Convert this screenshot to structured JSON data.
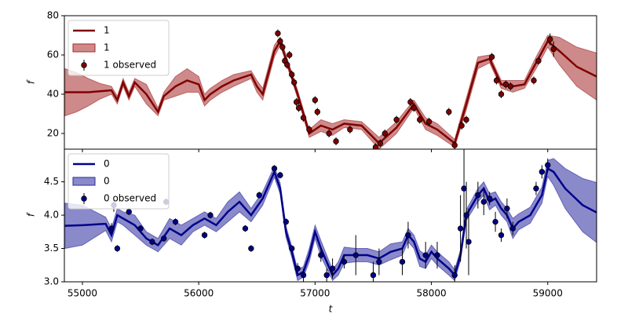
{
  "chart_data": [
    {
      "type": "line",
      "ylabel": "f",
      "xlim": [
        54845,
        59420
      ],
      "ylim": [
        12,
        80
      ],
      "yticks": [
        20,
        40,
        60,
        80
      ],
      "legend": "upper left",
      "series": [
        {
          "name": "1",
          "style": "line",
          "color": "#800000",
          "x": [
            54850,
            54950,
            55050,
            55150,
            55250,
            55300,
            55350,
            55400,
            55450,
            55550,
            55650,
            55700,
            55800,
            55900,
            56000,
            56050,
            56100,
            56200,
            56300,
            56450,
            56500,
            56550,
            56650,
            56700,
            56750,
            56850,
            56950,
            57050,
            57150,
            57250,
            57400,
            57550,
            57700,
            57850,
            57950,
            58050,
            58200,
            58300,
            58400,
            58500,
            58600,
            58700,
            58800,
            58900,
            59000,
            59100,
            59250,
            59420
          ],
          "values": [
            41,
            41,
            41,
            41.5,
            42,
            37,
            46,
            39,
            46,
            40,
            31,
            39,
            44,
            47,
            45,
            37,
            40,
            44,
            47,
            50,
            44,
            40,
            62,
            67,
            58,
            40,
            20,
            24,
            22,
            25,
            24,
            15,
            23,
            35,
            25,
            22,
            15,
            35,
            56,
            58,
            45,
            44,
            45,
            56,
            67,
            62,
            54,
            49
          ]
        },
        {
          "name": "1",
          "style": "band",
          "color": "#a52a2a",
          "lower": [
            29,
            31,
            34,
            37.5,
            40,
            35,
            44,
            37,
            44,
            35,
            29,
            37,
            39,
            41,
            41,
            34,
            37,
            41,
            44,
            48,
            41,
            37,
            59,
            65,
            56,
            38,
            18,
            21,
            19,
            23,
            22,
            12,
            20,
            33,
            22,
            19,
            13,
            32,
            53,
            56,
            43,
            41,
            43,
            53,
            64,
            55,
            44,
            37
          ],
          "upper": [
            53,
            51,
            48,
            45.5,
            44,
            39,
            48,
            41,
            48,
            45,
            33,
            41,
            49,
            53,
            49,
            40,
            43,
            47,
            50,
            52,
            47,
            43,
            65,
            69,
            60,
            42,
            22,
            27,
            25,
            27,
            26,
            18,
            26,
            37,
            28,
            25,
            17,
            38,
            59,
            60,
            47,
            47,
            47,
            59,
            70,
            69,
            64,
            61
          ]
        },
        {
          "name": "1 observed",
          "style": "errorbar",
          "color": "#800000",
          "x": [
            56680,
            56700,
            56720,
            56740,
            56760,
            56780,
            56800,
            56820,
            56840,
            56860,
            56900,
            56950,
            57000,
            57020,
            57120,
            57180,
            57300,
            57520,
            57560,
            57600,
            57700,
            57820,
            57850,
            57900,
            57980,
            58150,
            58200,
            58260,
            58300,
            58520,
            58560,
            58600,
            58640,
            58680,
            58880,
            58920,
            59020,
            59050
          ],
          "values": [
            71,
            67,
            64,
            57,
            55,
            60,
            50,
            46,
            36,
            33,
            28,
            22,
            37,
            31,
            20,
            16,
            22,
            13,
            15,
            20,
            27,
            36,
            33,
            27,
            26,
            31,
            14,
            24,
            27,
            59,
            47,
            40,
            45,
            44,
            47,
            57,
            68,
            63
          ],
          "errors": [
            2,
            2,
            2,
            2,
            2,
            2,
            2,
            2,
            2,
            2,
            2,
            2,
            2,
            2,
            2,
            2,
            2,
            2,
            2,
            2,
            2,
            2,
            2,
            2,
            2,
            2,
            2,
            2,
            2,
            2,
            2,
            2,
            2,
            2,
            2,
            2,
            3,
            4
          ]
        }
      ]
    },
    {
      "type": "line",
      "ylabel": "f",
      "xlabel": "t",
      "xlim": [
        54845,
        59420
      ],
      "ylim": [
        3.0,
        4.99
      ],
      "xticks": [
        55000,
        56000,
        57000,
        58000,
        59000
      ],
      "yticks": [
        {
          "value": 3.0,
          "label": "3.0"
        },
        3.5,
        {
          "value": 4.0,
          "label": "4.0"
        },
        4.5
      ],
      "legend": "upper left",
      "series": [
        {
          "name": "0",
          "style": "line",
          "color": "#00008b",
          "x": [
            54850,
            55000,
            55200,
            55250,
            55300,
            55350,
            55450,
            55550,
            55650,
            55750,
            55850,
            55950,
            56050,
            56150,
            56250,
            56350,
            56450,
            56550,
            56650,
            56700,
            56750,
            56800,
            56850,
            56900,
            56950,
            57000,
            57050,
            57100,
            57150,
            57200,
            57250,
            57350,
            57450,
            57550,
            57650,
            57750,
            57800,
            57850,
            57900,
            57950,
            58000,
            58050,
            58150,
            58200,
            58250,
            58300,
            58400,
            58450,
            58500,
            58550,
            58600,
            58650,
            58700,
            58750,
            58850,
            58950,
            59000,
            59050,
            59150,
            59300,
            59420
          ],
          "values": [
            3.84,
            3.85,
            3.87,
            3.7,
            4.0,
            3.95,
            3.85,
            3.65,
            3.55,
            3.8,
            3.7,
            3.85,
            3.95,
            3.85,
            4.05,
            4.2,
            4.0,
            4.25,
            4.65,
            4.4,
            3.75,
            3.45,
            3.1,
            3.15,
            3.4,
            3.75,
            3.5,
            3.3,
            3.1,
            3.2,
            3.4,
            3.4,
            3.4,
            3.35,
            3.45,
            3.5,
            3.7,
            3.6,
            3.35,
            3.3,
            3.45,
            3.35,
            3.2,
            3.1,
            3.4,
            4.0,
            4.3,
            4.4,
            4.2,
            4.25,
            4.1,
            4.0,
            3.8,
            3.9,
            4.0,
            4.3,
            4.7,
            4.65,
            4.4,
            4.15,
            4.04
          ]
        },
        {
          "name": "0",
          "style": "band",
          "color": "#2a2aa0",
          "lower": [
            3.5,
            3.55,
            3.77,
            3.6,
            3.9,
            3.85,
            3.7,
            3.55,
            3.45,
            3.65,
            3.55,
            3.75,
            3.85,
            3.75,
            3.9,
            4.05,
            3.9,
            4.15,
            4.57,
            4.32,
            3.67,
            3.37,
            3.02,
            3.07,
            3.3,
            3.65,
            3.38,
            3.2,
            3.02,
            3.1,
            3.28,
            3.3,
            3.3,
            3.25,
            3.33,
            3.4,
            3.6,
            3.5,
            3.23,
            3.2,
            3.35,
            3.25,
            3.1,
            3.02,
            3.32,
            3.92,
            4.2,
            4.3,
            4.08,
            4.15,
            4.0,
            3.9,
            3.65,
            3.78,
            3.88,
            4.18,
            4.58,
            4.45,
            4.1,
            3.75,
            3.59
          ],
          "upper": [
            4.18,
            4.15,
            3.97,
            3.8,
            4.1,
            4.05,
            4.0,
            3.75,
            3.65,
            3.95,
            3.85,
            3.95,
            4.05,
            3.95,
            4.2,
            4.35,
            4.1,
            4.35,
            4.73,
            4.48,
            3.83,
            3.53,
            3.18,
            3.23,
            3.5,
            3.85,
            3.62,
            3.4,
            3.18,
            3.3,
            3.52,
            3.5,
            3.5,
            3.45,
            3.57,
            3.6,
            3.8,
            3.7,
            3.47,
            3.4,
            3.55,
            3.45,
            3.3,
            3.18,
            3.48,
            4.08,
            4.4,
            4.5,
            4.32,
            4.35,
            4.2,
            4.1,
            3.95,
            4.02,
            4.12,
            4.42,
            4.82,
            4.85,
            4.7,
            4.55,
            4.49
          ]
        },
        {
          "name": "0 observed",
          "style": "errorbar",
          "color": "#00008b",
          "x": [
            55250,
            55270,
            55300,
            55400,
            55500,
            55600,
            55700,
            55720,
            55800,
            56050,
            56100,
            56400,
            56450,
            56520,
            56650,
            56700,
            56750,
            56800,
            56850,
            56900,
            57050,
            57100,
            57150,
            57250,
            57350,
            57500,
            57550,
            57750,
            57800,
            57950,
            58050,
            58200,
            58250,
            58280,
            58300,
            58320,
            58400,
            58450,
            58500,
            58550,
            58600,
            58650,
            58700,
            58900,
            58950,
            59000
          ],
          "values": [
            3.8,
            4.15,
            3.5,
            4.05,
            3.8,
            3.6,
            3.65,
            4.2,
            3.9,
            3.7,
            4.0,
            3.8,
            3.5,
            4.3,
            4.7,
            4.6,
            3.9,
            3.5,
            3.2,
            3.1,
            3.4,
            3.1,
            3.2,
            3.3,
            3.4,
            3.1,
            3.3,
            3.3,
            3.7,
            3.4,
            3.4,
            3.1,
            3.8,
            4.4,
            4.0,
            3.6,
            4.3,
            4.2,
            4.25,
            3.9,
            3.7,
            4.1,
            3.8,
            4.4,
            4.65,
            4.75
          ],
          "errors": [
            0.08,
            0.1,
            0.05,
            0.05,
            0.05,
            0.05,
            0.05,
            0.05,
            0.05,
            0.05,
            0.05,
            0.05,
            0.05,
            0.05,
            0.05,
            0.05,
            0.05,
            0.05,
            0.08,
            0.1,
            0.1,
            0.1,
            0.15,
            0.1,
            0.3,
            0.2,
            0.2,
            0.2,
            0.2,
            0.2,
            0.2,
            0.15,
            0.5,
            0.6,
            0.5,
            0.5,
            0.2,
            0.2,
            0.1,
            0.15,
            0.1,
            0.15,
            0.1,
            0.1,
            0.1,
            0.1
          ]
        }
      ]
    }
  ]
}
